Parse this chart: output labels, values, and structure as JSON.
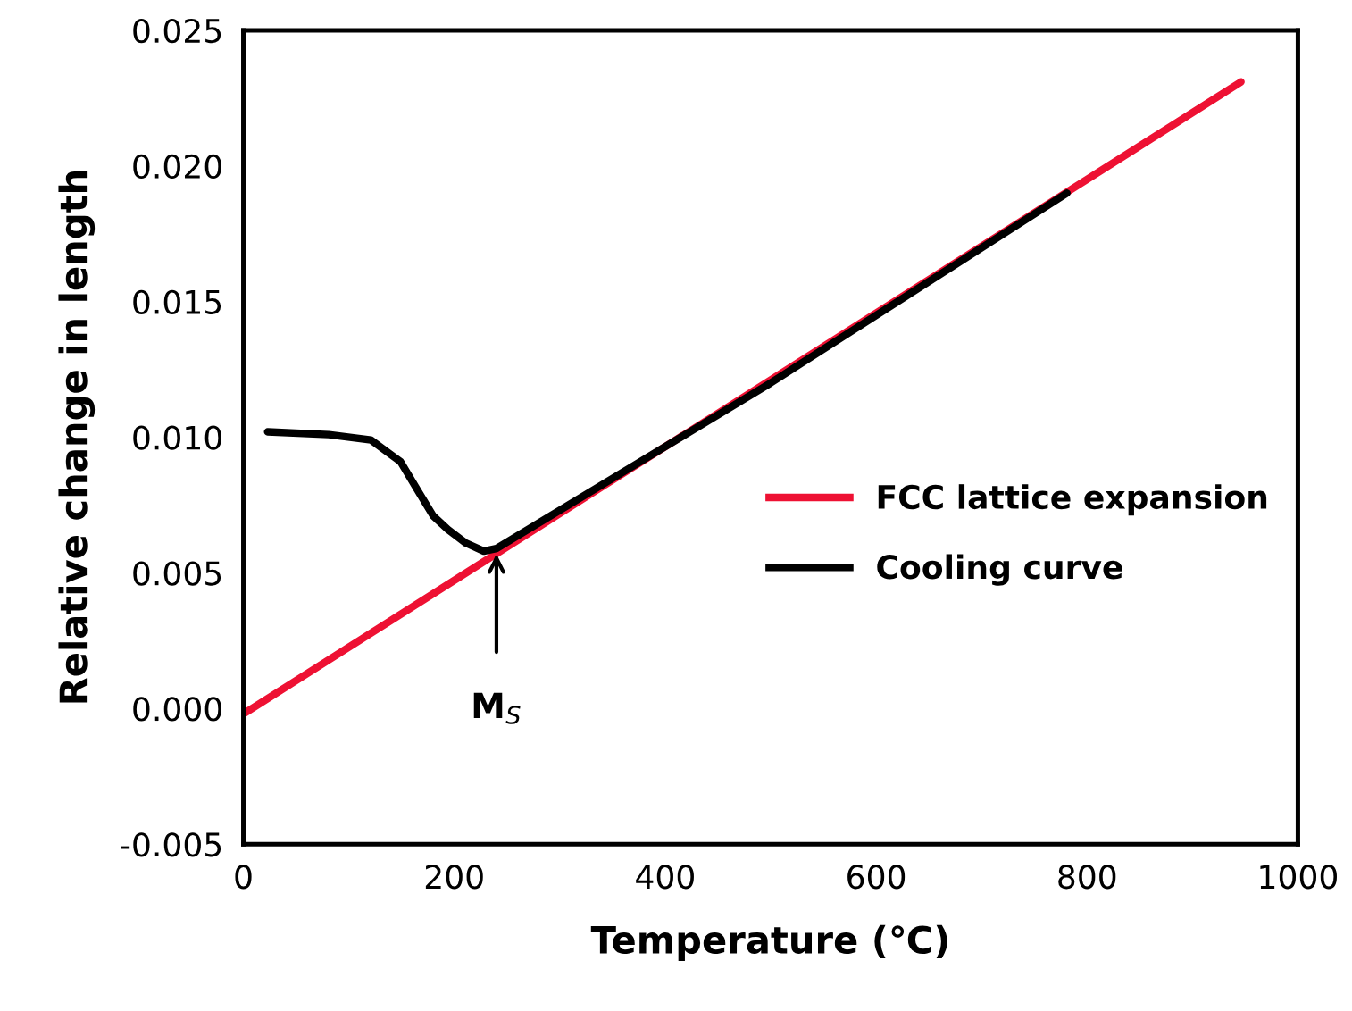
{
  "chart_data": {
    "type": "line",
    "xlabel": "Temperature (℃)",
    "ylabel": "Relative change in length",
    "xlim": [
      0,
      1000
    ],
    "xticks": [
      0,
      200,
      400,
      600,
      800,
      1000
    ],
    "ylim": [
      -0.005,
      0.025
    ],
    "yticks": [
      {
        "value": -0.005,
        "label": "-0.005"
      },
      {
        "value": 0,
        "label": "0.000"
      },
      {
        "value": 0.005,
        "label": "0.005"
      },
      {
        "value": 0.01,
        "label": "0.010"
      },
      {
        "value": 0.015,
        "label": "0.015"
      },
      {
        "value": 0.02,
        "label": "0.020"
      },
      {
        "value": 0.025,
        "label": "0.025"
      }
    ],
    "grid": false,
    "legend": "right",
    "marker": "none",
    "line_style": "solid",
    "series": [
      {
        "name": "FCC lattice expansion",
        "color": "#ee1133",
        "x": [
          0,
          946
        ],
        "values": [
          -0.0002,
          0.0231
        ]
      },
      {
        "name": "Cooling curve",
        "color": "#000000",
        "x": [
          23,
          81,
          121,
          149,
          166,
          180,
          194,
          211,
          228,
          240,
          500,
          781
        ],
        "values": [
          0.0102,
          0.0101,
          0.0099,
          0.0091,
          0.008,
          0.0071,
          0.0066,
          0.0061,
          0.0058,
          0.0059,
          0.012,
          0.019
        ]
      }
    ],
    "annotations": [
      {
        "text": "M$_{S}$",
        "x": 240,
        "y": 0.0057
      }
    ]
  }
}
